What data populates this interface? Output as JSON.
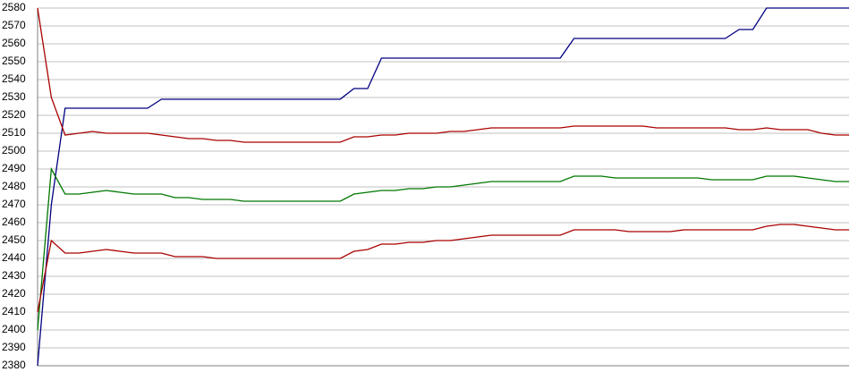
{
  "chart_data": {
    "type": "line",
    "categories": [
      null,
      null,
      null,
      null,
      null,
      null,
      null,
      null,
      null,
      null,
      null,
      null,
      null,
      null,
      null,
      null,
      null,
      null,
      null,
      null,
      null,
      null,
      null,
      null,
      null,
      null,
      null,
      null,
      null,
      null,
      null,
      null,
      null,
      null,
      null,
      null,
      null,
      null,
      null,
      null,
      null,
      null,
      null,
      null,
      null,
      null,
      null,
      null,
      null,
      null,
      null,
      null,
      null,
      null,
      null,
      null,
      null,
      null,
      null,
      null
    ],
    "ylim": [
      2380,
      2580
    ],
    "yticks": [
      2380,
      2390,
      2400,
      2410,
      2420,
      2430,
      2440,
      2450,
      2460,
      2470,
      2480,
      2490,
      2500,
      2510,
      2520,
      2530,
      2540,
      2550,
      2560,
      2570,
      2580
    ],
    "grid": true,
    "series": [
      {
        "color": "#000080",
        "values": [
          2380,
          2470,
          2524,
          2524,
          2524,
          2524,
          2524,
          2524,
          2524,
          2529,
          2529,
          2529,
          2529,
          2529,
          2529,
          2529,
          2529,
          2529,
          2529,
          2529,
          2529,
          2529,
          2529,
          2535,
          2535,
          2552,
          2552,
          2552,
          2552,
          2552,
          2552,
          2552,
          2552,
          2552,
          2552,
          2552,
          2552,
          2552,
          2552,
          2563,
          2563,
          2563,
          2563,
          2563,
          2563,
          2563,
          2563,
          2563,
          2563,
          2563,
          2563,
          2568,
          2568,
          2580,
          2580,
          2580,
          2580,
          2580,
          2580,
          2580
        ]
      },
      {
        "color": "#aa0000",
        "values": [
          2580,
          2530,
          2509,
          2510,
          2511,
          2510,
          2510,
          2510,
          2510,
          2509,
          2508,
          2507,
          2507,
          2506,
          2506,
          2505,
          2505,
          2505,
          2505,
          2505,
          2505,
          2505,
          2505,
          2508,
          2508,
          2509,
          2509,
          2510,
          2510,
          2510,
          2511,
          2511,
          2512,
          2513,
          2513,
          2513,
          2513,
          2513,
          2513,
          2514,
          2514,
          2514,
          2514,
          2514,
          2514,
          2513,
          2513,
          2513,
          2513,
          2513,
          2513,
          2512,
          2512,
          2513,
          2512,
          2512,
          2512,
          2510,
          2509,
          2509
        ]
      },
      {
        "color": "#007700",
        "values": [
          2400,
          2490,
          2476,
          2476,
          2477,
          2478,
          2477,
          2476,
          2476,
          2476,
          2474,
          2474,
          2473,
          2473,
          2473,
          2472,
          2472,
          2472,
          2472,
          2472,
          2472,
          2472,
          2472,
          2476,
          2477,
          2478,
          2478,
          2479,
          2479,
          2480,
          2480,
          2481,
          2482,
          2483,
          2483,
          2483,
          2483,
          2483,
          2483,
          2486,
          2486,
          2486,
          2485,
          2485,
          2485,
          2485,
          2485,
          2485,
          2485,
          2484,
          2484,
          2484,
          2484,
          2486,
          2486,
          2486,
          2485,
          2484,
          2483,
          2483
        ]
      },
      {
        "color": "#aa0000",
        "values": [
          2410,
          2450,
          2443,
          2443,
          2444,
          2445,
          2444,
          2443,
          2443,
          2443,
          2441,
          2441,
          2441,
          2440,
          2440,
          2440,
          2440,
          2440,
          2440,
          2440,
          2440,
          2440,
          2440,
          2444,
          2445,
          2448,
          2448,
          2449,
          2449,
          2450,
          2450,
          2451,
          2452,
          2453,
          2453,
          2453,
          2453,
          2453,
          2453,
          2456,
          2456,
          2456,
          2456,
          2455,
          2455,
          2455,
          2455,
          2456,
          2456,
          2456,
          2456,
          2456,
          2456,
          2458,
          2459,
          2459,
          2458,
          2457,
          2456,
          2456
        ]
      }
    ]
  }
}
